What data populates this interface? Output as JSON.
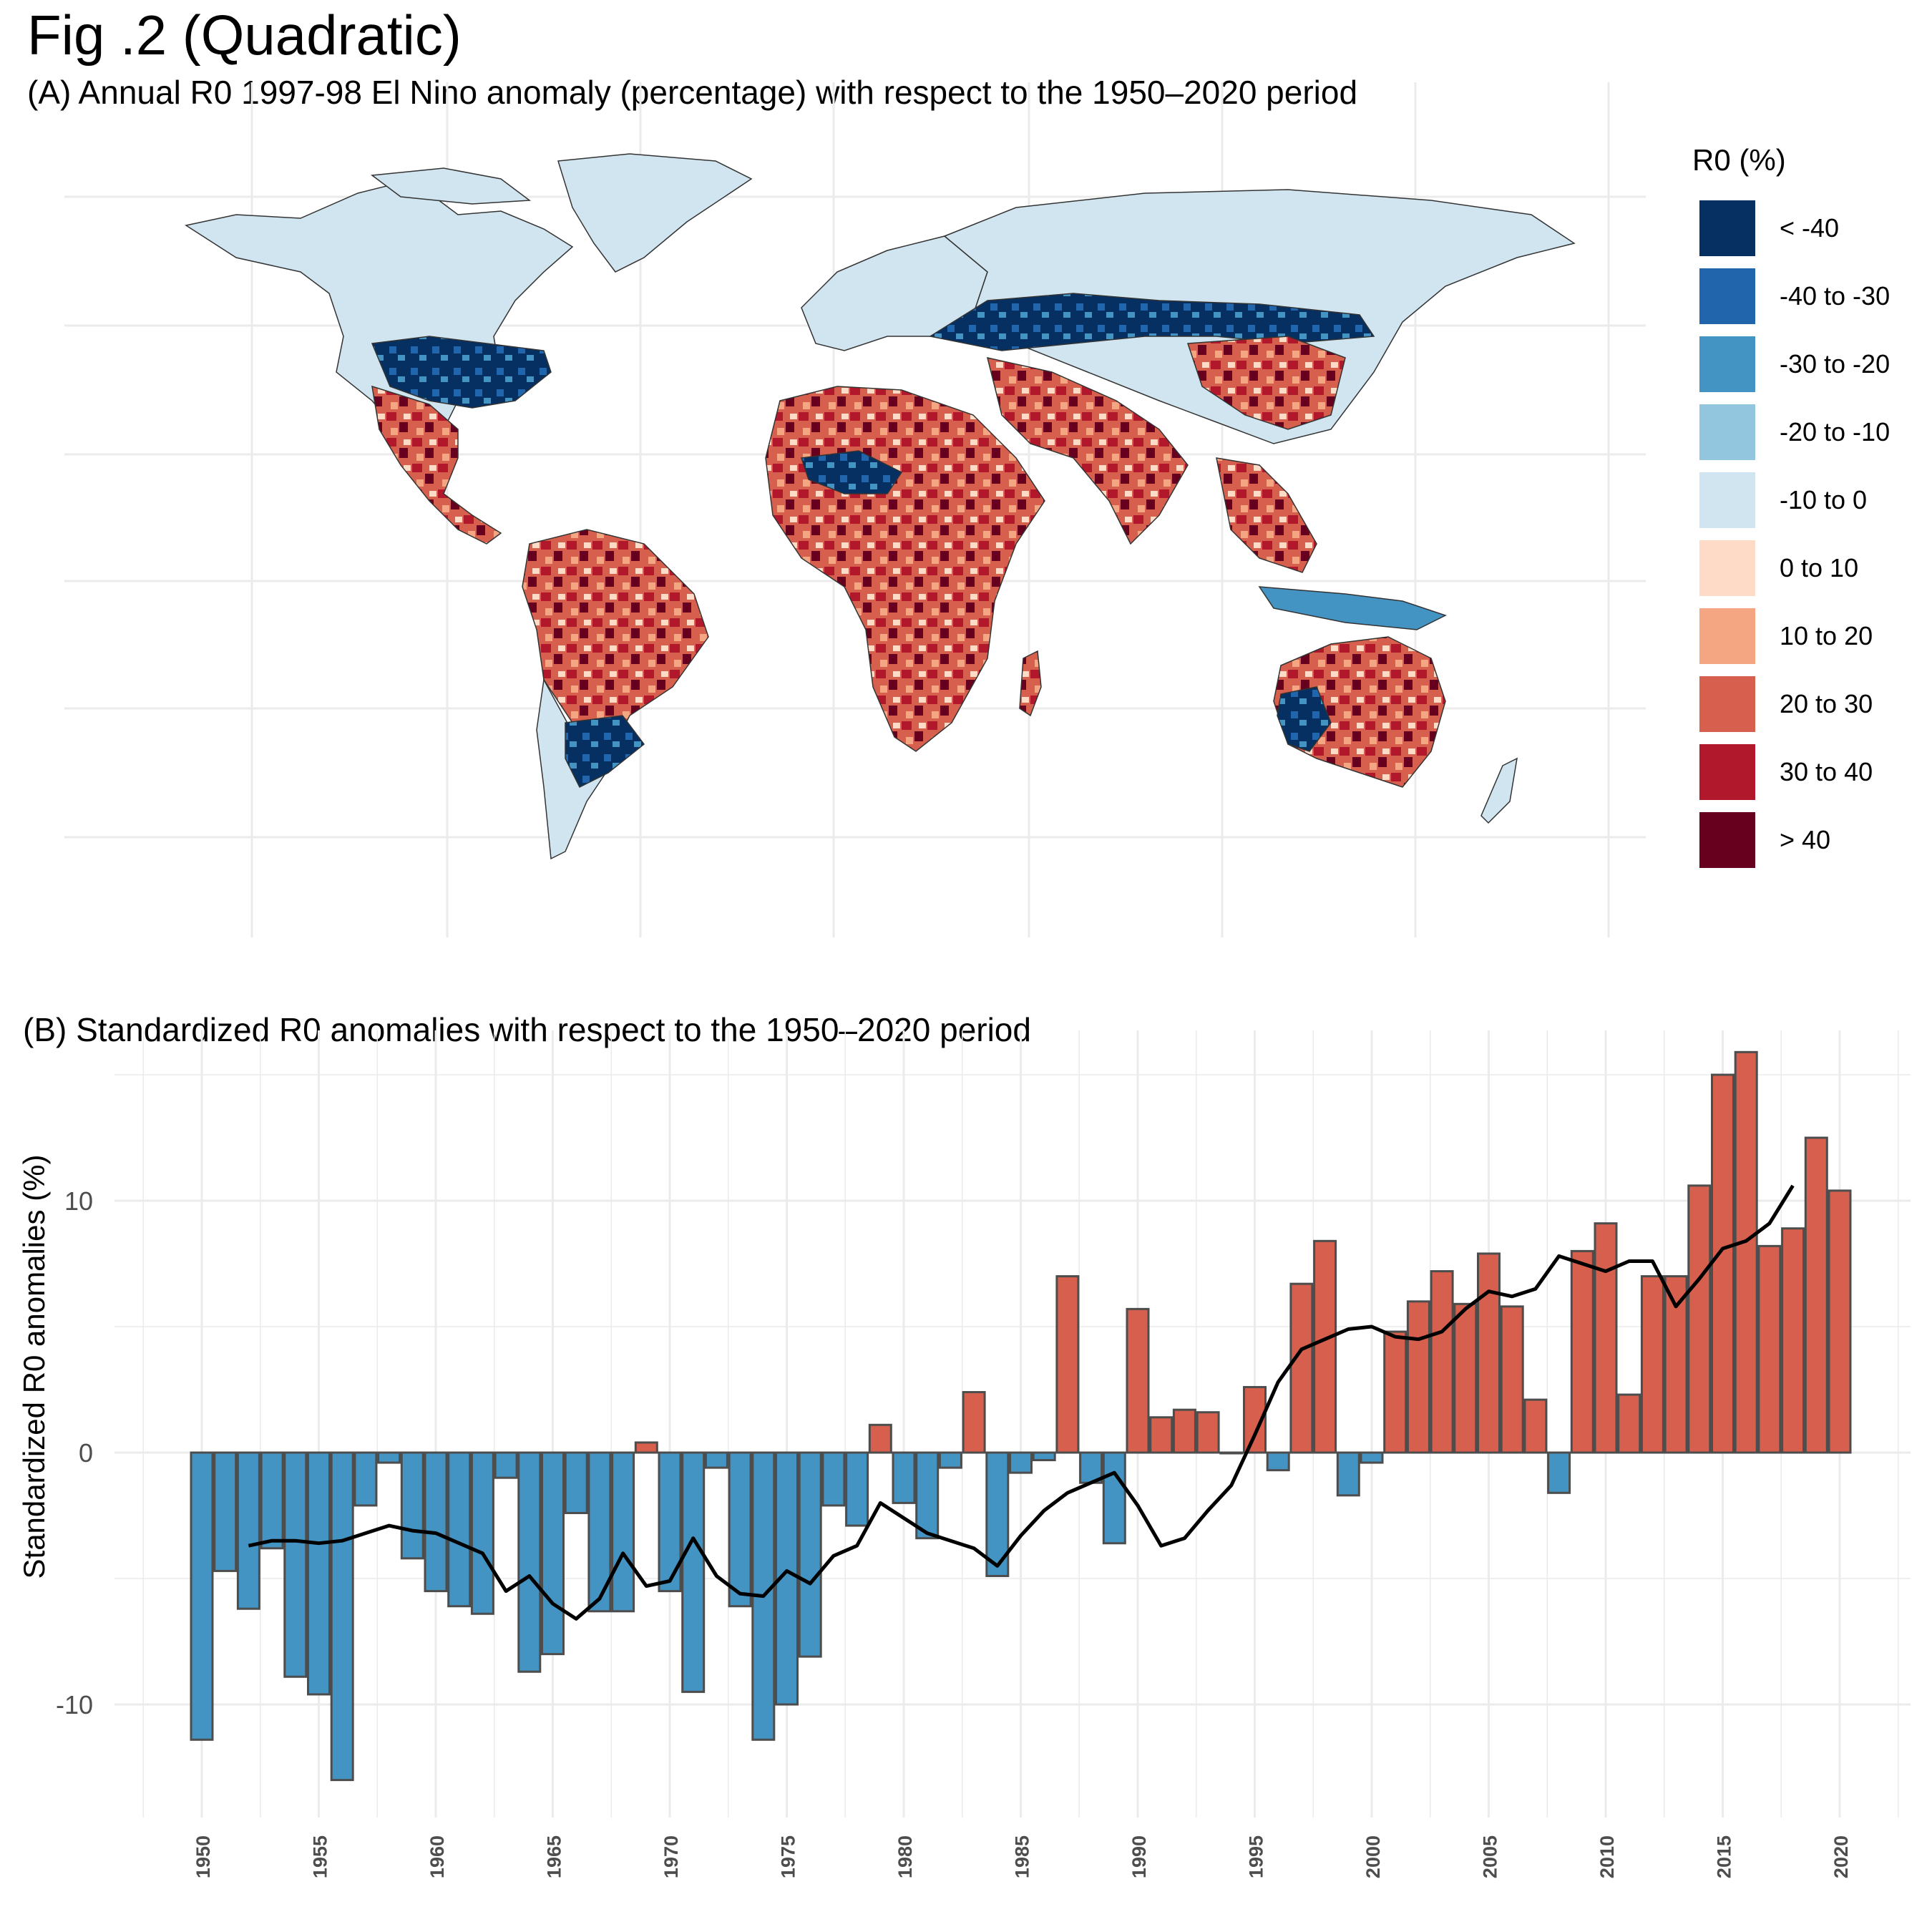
{
  "figure": {
    "title": "Fig .2 (Quadratic)",
    "panel_a_title": "(A) Annual R0 1997-98 El Nino anomaly (percentage) with respect to the 1950–2020 period",
    "panel_b_title": "(B) Standardized R0 anomalies with respect to the 1950–2020 period"
  },
  "legend": {
    "title": "R0 (%)",
    "items": [
      {
        "label": "< -40",
        "color": "#053061"
      },
      {
        "label": "-40 to -30",
        "color": "#2166ac"
      },
      {
        "label": "-30 to -20",
        "color": "#4393c3"
      },
      {
        "label": "-20 to -10",
        "color": "#92c5de"
      },
      {
        "label": "-10 to 0",
        "color": "#d1e5f0"
      },
      {
        "label": "0 to 10",
        "color": "#fddbc7"
      },
      {
        "label": "10 to 20",
        "color": "#f4a582"
      },
      {
        "label": "20 to 30",
        "color": "#d6604d"
      },
      {
        "label": "30 to 40",
        "color": "#b2182b"
      },
      {
        "label": "> 40",
        "color": "#67001f"
      }
    ]
  },
  "chart_data": [
    {
      "type": "map",
      "title": "(A) Annual R0 1997-98 El Nino anomaly (percentage) with respect to the 1950–2020 period",
      "legend_title": "R0 (%)",
      "legend_placement": "right"
    },
    {
      "type": "bar",
      "title": "(B) Standardized R0 anomalies with respect to the 1950–2020 period",
      "ylabel": "Standardized R0 anomalies (%)",
      "xlabel": "",
      "ylim": [
        -14,
        16
      ],
      "yticks": [
        -10,
        0,
        10
      ],
      "xticks": [
        1950,
        1955,
        1960,
        1965,
        1970,
        1975,
        1980,
        1985,
        1990,
        1995,
        2000,
        2005,
        2010,
        2015,
        2020
      ],
      "grid": true,
      "positive_color": "#d6604d",
      "negative_color": "#4393c3",
      "categories": [
        1950,
        1951,
        1952,
        1953,
        1954,
        1955,
        1956,
        1957,
        1958,
        1959,
        1960,
        1961,
        1962,
        1963,
        1964,
        1965,
        1966,
        1967,
        1968,
        1969,
        1970,
        1971,
        1972,
        1973,
        1974,
        1975,
        1976,
        1977,
        1978,
        1979,
        1980,
        1981,
        1982,
        1983,
        1984,
        1985,
        1986,
        1987,
        1988,
        1989,
        1990,
        1991,
        1992,
        1993,
        1994,
        1995,
        1996,
        1997,
        1998,
        1999,
        2000,
        2001,
        2002,
        2003,
        2004,
        2005,
        2006,
        2007,
        2008,
        2009,
        2010,
        2011,
        2012,
        2013,
        2014,
        2015,
        2016,
        2017,
        2018,
        2019,
        2020
      ],
      "values": [
        -11.4,
        -4.7,
        -6.2,
        -3.8,
        -8.9,
        -9.6,
        -13.0,
        -2.1,
        -0.4,
        -4.2,
        -5.5,
        -6.1,
        -6.4,
        -1.0,
        -8.7,
        -8.0,
        -2.4,
        -6.3,
        -6.3,
        0.4,
        -5.5,
        -9.5,
        -0.6,
        -6.1,
        -11.4,
        -10.0,
        -8.1,
        -2.1,
        -2.9,
        1.1,
        -2.0,
        -3.4,
        -0.6,
        2.4,
        -4.9,
        -0.8,
        -0.3,
        7.0,
        -1.2,
        -3.6,
        5.7,
        1.4,
        1.7,
        1.6,
        0.0,
        2.6,
        -0.7,
        6.7,
        8.4,
        -1.7,
        -0.4,
        4.8,
        6.0,
        7.2,
        5.9,
        7.9,
        5.8,
        2.1,
        -1.6,
        8.0,
        9.1,
        2.3,
        7.0,
        7.0,
        10.6,
        15.0,
        15.9,
        8.2,
        8.9,
        12.5,
        10.4
      ],
      "series": [
        {
          "name": "",
          "type": "line",
          "x": [
            1952,
            1953,
            1954,
            1955,
            1956,
            1957,
            1958,
            1959,
            1960,
            1961,
            1962,
            1963,
            1964,
            1965,
            1966,
            1967,
            1968,
            1969,
            1970,
            1971,
            1972,
            1973,
            1974,
            1975,
            1976,
            1977,
            1978,
            1979,
            1980,
            1981,
            1982,
            1983,
            1984,
            1985,
            1986,
            1987,
            1988,
            1989,
            1990,
            1991,
            1992,
            1993,
            1994,
            1995,
            1996,
            1997,
            1998,
            1999,
            2000,
            2001,
            2002,
            2003,
            2004,
            2005,
            2006,
            2007,
            2008,
            2009,
            2010,
            2011,
            2012,
            2013,
            2014,
            2015,
            2016,
            2017,
            2018
          ],
          "values": [
            -3.7,
            -3.5,
            -3.5,
            -3.6,
            -3.5,
            -3.2,
            -2.9,
            -3.1,
            -3.2,
            -3.6,
            -4.0,
            -5.5,
            -4.9,
            -6.0,
            -6.6,
            -5.8,
            -4.0,
            -5.3,
            -5.1,
            -3.4,
            -4.9,
            -5.6,
            -5.7,
            -4.7,
            -5.2,
            -4.1,
            -3.7,
            -2.0,
            -2.6,
            -3.2,
            -3.5,
            -3.8,
            -4.5,
            -3.3,
            -2.3,
            -1.6,
            -1.2,
            -0.8,
            -2.1,
            -3.7,
            -3.4,
            -2.3,
            -1.3,
            0.7,
            2.8,
            4.1,
            4.5,
            4.9,
            5.0,
            4.6,
            4.5,
            4.8,
            5.7,
            6.4,
            6.2,
            6.5,
            7.8,
            7.5,
            7.2,
            7.6,
            7.6,
            5.8,
            6.9,
            8.1,
            8.4,
            9.1,
            10.6
          ]
        }
      ]
    }
  ]
}
